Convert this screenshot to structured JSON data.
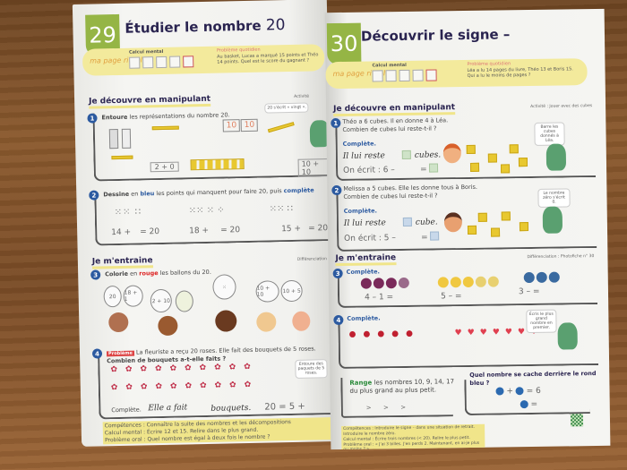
{
  "left_page": {
    "number": "29",
    "title": "Étudier le nombre",
    "title_number": "20",
    "ritual": {
      "label": "ma page rituel",
      "mental_calc": "Calcul mental",
      "problem_label": "Problème quotidien",
      "problem_text": "Au basket, Lucas a marqué 15 points et Théo 14 points. Quel est le score du gagnant ?"
    },
    "section1": "Je découvre en manipulant",
    "activity": "Activité",
    "ex1": {
      "n": "1",
      "verb": "Entoure",
      "text": "les représentations du nombre 20.",
      "bubble": "20 s'écrit « vingt ».",
      "exprs": [
        "2 + 0",
        "10 + 10"
      ],
      "cards": [
        "10",
        "10"
      ]
    },
    "ex2": {
      "n": "2",
      "verb": "Dessine",
      "mid": "en",
      "color": "bleu",
      "text": "les points qui manquent pour faire 20, puis",
      "complete": "complète",
      "eqs": [
        "14 +",
        "= 20",
        "18 +",
        "= 20",
        "15 +",
        "= 20"
      ]
    },
    "section2": "Je m'entraine",
    "diff": "Différenciation",
    "ex3": {
      "n": "3",
      "verb": "Colorie",
      "mid": "en",
      "color": "rouge",
      "text": "les ballons du 20.",
      "balloons": [
        "20",
        "18 + 1",
        "2 + 10",
        "10 + 10",
        "10 + 5"
      ]
    },
    "ex4": {
      "n": "4",
      "tag": "Problème",
      "text": "La fleuriste a reçu 20 roses. Elle fait des bouquets de 5 roses.",
      "question": "Combien de bouquets a-t-elle faits ?",
      "complete": "Complète.",
      "hand1": "Elle a fait",
      "hand2": "bouquets.",
      "eq": "20 = 5 +",
      "bubble": "Entoure des paquets de 5 roses."
    },
    "footer": [
      "Compétences : Connaître la suite des nombres et les décompositions",
      "Calcul mental : Écrire 12 et 15. Relire dans le plus grand.",
      "Problème oral : Quel nombre est égal à deux fois le nombre ?"
    ]
  },
  "right_page": {
    "number": "30",
    "title": "Découvrir le signe –",
    "ritual": {
      "label": "ma page rituel",
      "mental_calc": "Calcul mental",
      "problem_label": "Problème quotidien",
      "problem_text": "Léa a lu 14 pages du livre, Théo 13 et Boris 15. Qui a lu le moins de pages ?"
    },
    "section1": "Je découvre en manipulant",
    "activity": "Activité : Jouer avec des cubes",
    "ex1": {
      "n": "1",
      "text1": "Théo a 6 cubes. Il en donne 4 à Léa.",
      "text2": "Combien de cubes lui reste-t-il ?",
      "complete": "Complète.",
      "hand1": "Il lui reste",
      "hand2": "cubes.",
      "write": "On écrit : 6 –",
      "equals": "=",
      "bubble": "Barre les cubes donnés à Léa."
    },
    "ex2": {
      "n": "2",
      "text1": "Melissa a 5 cubes. Elle les donne tous à Boris.",
      "text2": "Combien de cubes lui reste-t-il ?",
      "complete": "Complète.",
      "hand1": "Il lui reste",
      "hand2": "cube.",
      "write": "On écrit : 5 –",
      "equals": "=",
      "bubble": "Le nombre zéro s'écrit 0."
    },
    "section2": "Je m'entraine",
    "diff": "Différenciation : Photofiche n° 30",
    "ex3": {
      "n": "3",
      "complete": "Complète.",
      "eqs": [
        "4 – 1 =",
        "5 –   =",
        "3 –   ="
      ]
    },
    "ex4": {
      "n": "4",
      "complete": "Complète.",
      "bubble": "Écris le plus grand nombre en premier."
    },
    "ex5": {
      "verb": "Range",
      "text": "les nombres 10, 9, 14, 17",
      "text2": "du plus grand au plus petit.",
      "arrows": ">      >      >"
    },
    "ex6": {
      "text": "Quel nombre se cache derrière le rond bleu ?",
      "eq1": "+",
      "eq1b": "= 6",
      "eq2": "="
    },
    "footer": [
      "Compétences : Introduire le signe – dans une situation de retrait. Introduire le nombre zéro.",
      "Calcul mental : Écrire trois nombres (< 20). Relire le plus petit.",
      "Problème oral : « J'ai 3 billes. J'en perds 2. Maintenant, en ai-je plus ou moins ? »"
    ]
  },
  "colors": {
    "green_tab": "#95b545",
    "title": "#2a2450",
    "ribbon": "#f3ea9c",
    "badge": "#2c5aa0"
  }
}
